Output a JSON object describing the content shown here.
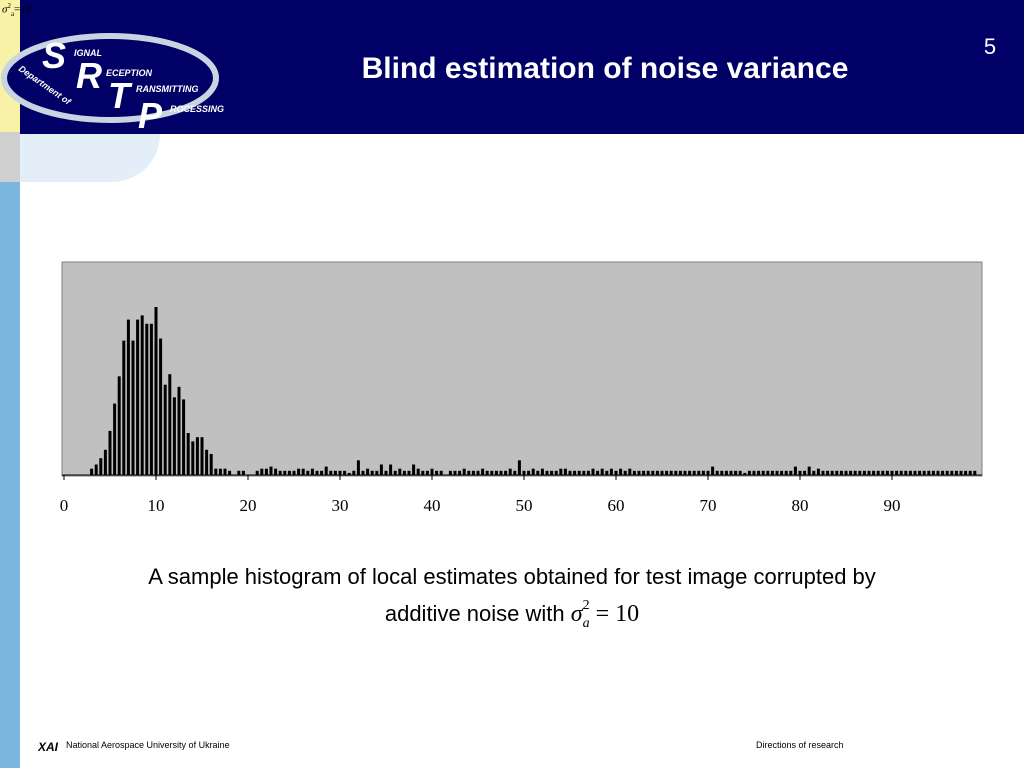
{
  "slide": {
    "title": "Blind estimation of noise variance",
    "number": "5",
    "corner_formula": {
      "symbol": "σ",
      "sup": "2",
      "sub": "a",
      "tail": "=10"
    },
    "caption_line1": "A sample histogram of local estimates obtained for test image corrupted by",
    "caption_line2": "additive noise with",
    "caption_formula": {
      "symbol": "σ",
      "sub": "a",
      "sup": "2",
      "rest": "= 10"
    }
  },
  "logo": {
    "letters": [
      "S",
      "R",
      "T",
      "P"
    ],
    "words": [
      "IGNAL",
      "ECEPTION",
      "RANSMITTING",
      "ROCESSING"
    ],
    "arc_text": "Department of"
  },
  "footer": {
    "org_mark": "XAI",
    "organization": "National Aerospace University of Ukraine",
    "section": "Directions of research"
  },
  "colors": {
    "header_bg": "#000066",
    "plot_bg": "#c0c0c0",
    "bar": "#000000",
    "left_strip_yellow": "#f7f2a6",
    "left_strip_blue": "#7ab6dd"
  },
  "chart_data": {
    "type": "bar",
    "title": "",
    "xlabel": "",
    "ylabel": "",
    "xlim": [
      0,
      100
    ],
    "ylim": [
      0,
      1
    ],
    "x_ticks": [
      "0",
      "10",
      "20",
      "30",
      "40",
      "50",
      "60",
      "70",
      "80",
      "90"
    ],
    "y_ticks": [],
    "grid": false,
    "legend": "none",
    "x": [
      3,
      3.5,
      4,
      4.5,
      5,
      5.5,
      6,
      6.5,
      7,
      7.5,
      8,
      8.5,
      9,
      9.5,
      10,
      10.5,
      11,
      11.5,
      12,
      12.5,
      13,
      13.5,
      14,
      14.5,
      15,
      15.5,
      16,
      16.5,
      17,
      17.5,
      18,
      19,
      19.5,
      21,
      21.5,
      22,
      22.5,
      23,
      23.5,
      24,
      24.5,
      25,
      25.5,
      26,
      26.5,
      27,
      27.5,
      28,
      28.5,
      29,
      29.5,
      30,
      30.5,
      31,
      31.5,
      32,
      32.5,
      33,
      33.5,
      34,
      34.5,
      35,
      35.5,
      36,
      36.5,
      37,
      37.5,
      38,
      38.5,
      39,
      39.5,
      40,
      40.5,
      41,
      42,
      42.5,
      43,
      43.5,
      44,
      44.5,
      45,
      45.5,
      46,
      46.5,
      47,
      47.5,
      48,
      48.5,
      49,
      49.5,
      50,
      50.5,
      51,
      51.5,
      52,
      52.5,
      53,
      53.5,
      54,
      54.5,
      55,
      55.5,
      56,
      56.5,
      57,
      57.5,
      58,
      58.5,
      59,
      59.5,
      60,
      60.5,
      61,
      61.5,
      62,
      62.5,
      63,
      63.5,
      64,
      64.5,
      65,
      65.5,
      66,
      66.5,
      67,
      67.5,
      68,
      68.5,
      69,
      69.5,
      70,
      70.5,
      71,
      71.5,
      72,
      72.5,
      73,
      73.5,
      74,
      74.5,
      75,
      75.5,
      76,
      76.5,
      77,
      77.5,
      78,
      78.5,
      79,
      79.5,
      80,
      80.5,
      81,
      81.5,
      82,
      82.5,
      83,
      83.5,
      84,
      84.5,
      85,
      85.5,
      86,
      86.5,
      87,
      87.5,
      88,
      88.5,
      89,
      89.5,
      90,
      90.5,
      91,
      91.5,
      92,
      92.5,
      93,
      93.5,
      94,
      94.5,
      95,
      95.5,
      96,
      96.5,
      97,
      97.5,
      98,
      98.5,
      99
    ],
    "values": [
      0.03,
      0.05,
      0.08,
      0.12,
      0.21,
      0.34,
      0.47,
      0.64,
      0.74,
      0.64,
      0.74,
      0.76,
      0.72,
      0.72,
      0.8,
      0.65,
      0.43,
      0.48,
      0.37,
      0.42,
      0.36,
      0.2,
      0.16,
      0.18,
      0.18,
      0.12,
      0.1,
      0.03,
      0.03,
      0.03,
      0.02,
      0.02,
      0.02,
      0.02,
      0.03,
      0.03,
      0.04,
      0.03,
      0.02,
      0.02,
      0.02,
      0.02,
      0.03,
      0.03,
      0.02,
      0.03,
      0.02,
      0.02,
      0.04,
      0.02,
      0.02,
      0.02,
      0.02,
      0.01,
      0.02,
      0.07,
      0.02,
      0.03,
      0.02,
      0.02,
      0.05,
      0.02,
      0.05,
      0.02,
      0.03,
      0.02,
      0.02,
      0.05,
      0.03,
      0.02,
      0.02,
      0.03,
      0.02,
      0.02,
      0.02,
      0.02,
      0.02,
      0.03,
      0.02,
      0.02,
      0.02,
      0.03,
      0.02,
      0.02,
      0.02,
      0.02,
      0.02,
      0.03,
      0.02,
      0.07,
      0.02,
      0.02,
      0.03,
      0.02,
      0.03,
      0.02,
      0.02,
      0.02,
      0.03,
      0.03,
      0.02,
      0.02,
      0.02,
      0.02,
      0.02,
      0.03,
      0.02,
      0.03,
      0.02,
      0.03,
      0.02,
      0.03,
      0.02,
      0.03,
      0.02,
      0.02,
      0.02,
      0.02,
      0.02,
      0.02,
      0.02,
      0.02,
      0.02,
      0.02,
      0.02,
      0.02,
      0.02,
      0.02,
      0.02,
      0.02,
      0.02,
      0.04,
      0.02,
      0.02,
      0.02,
      0.02,
      0.02,
      0.02,
      0.01,
      0.02,
      0.02,
      0.02,
      0.02,
      0.02,
      0.02,
      0.02,
      0.02,
      0.02,
      0.02,
      0.04,
      0.02,
      0.02,
      0.04,
      0.02,
      0.03,
      0.02,
      0.02,
      0.02,
      0.02,
      0.02,
      0.02,
      0.02,
      0.02,
      0.02,
      0.02,
      0.02,
      0.02,
      0.02,
      0.02,
      0.02,
      0.02,
      0.02,
      0.02,
      0.02,
      0.02,
      0.02,
      0.02,
      0.02,
      0.02,
      0.02,
      0.02,
      0.02,
      0.02,
      0.02,
      0.02,
      0.02,
      0.02,
      0.02,
      0.02
    ]
  }
}
